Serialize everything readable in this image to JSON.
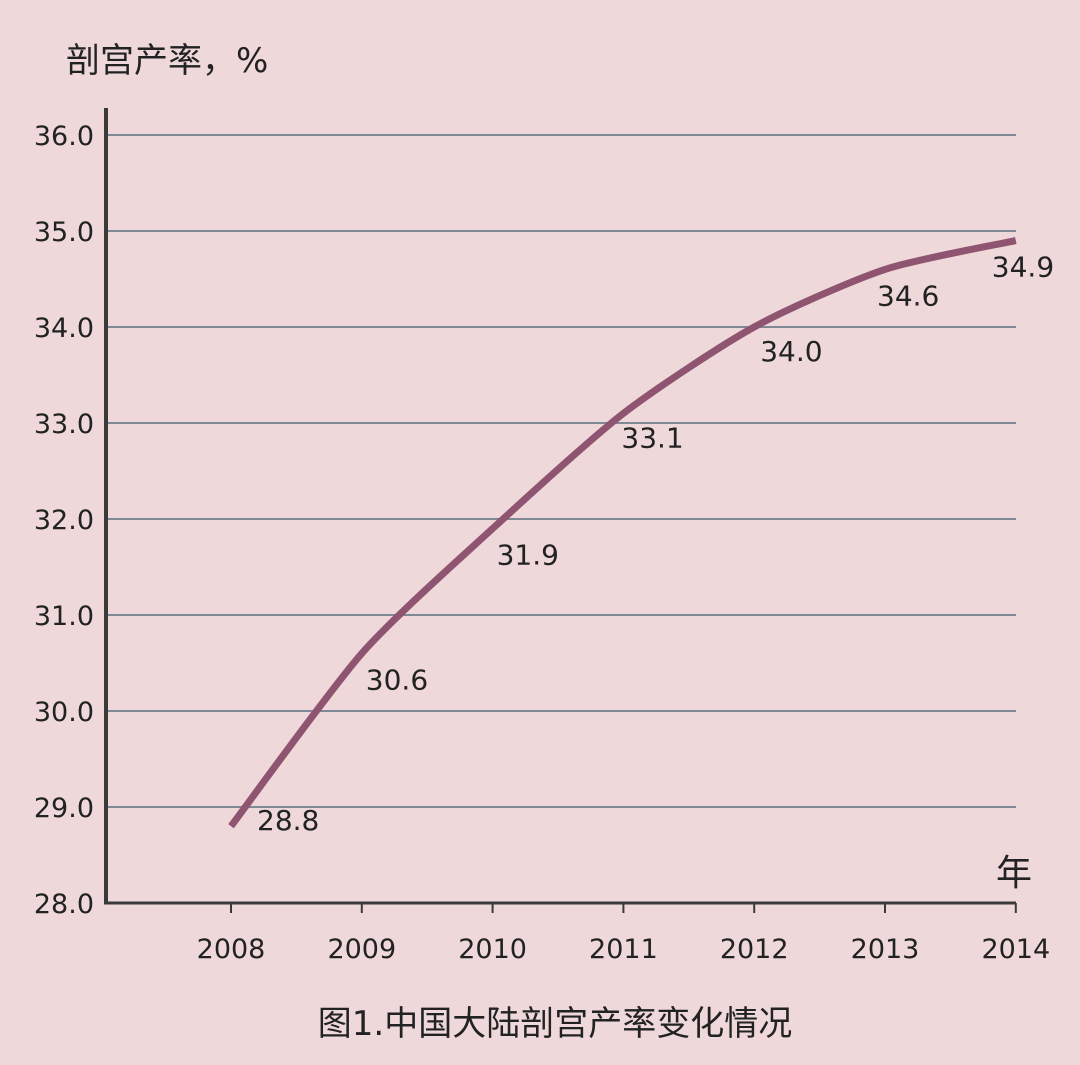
{
  "chart_data": {
    "type": "line",
    "title": "图1.中国大陆剖宫产率变化情况",
    "ylabel": "剖宫产率，%",
    "xunit": "年",
    "x": [
      "2008",
      "2009",
      "2010",
      "2011",
      "2012",
      "2013",
      "2014"
    ],
    "series": [
      {
        "values": [
          28.8,
          30.6,
          31.9,
          33.1,
          34.0,
          34.6,
          34.9
        ]
      }
    ],
    "data_labels": [
      "28.8",
      "30.6",
      "31.9",
      "33.1",
      "34.0",
      "34.6",
      "34.9"
    ],
    "ylim": [
      28.0,
      36.0
    ],
    "yticks": [
      "28.0",
      "29.0",
      "30.0",
      "31.0",
      "32.0",
      "33.0",
      "34.0",
      "35.0",
      "36.0"
    ],
    "grid": true,
    "colors": {
      "line": "#8e5470",
      "grid": "#7f8994",
      "axis": "#3a3a3a",
      "background": "#efd8da"
    }
  }
}
